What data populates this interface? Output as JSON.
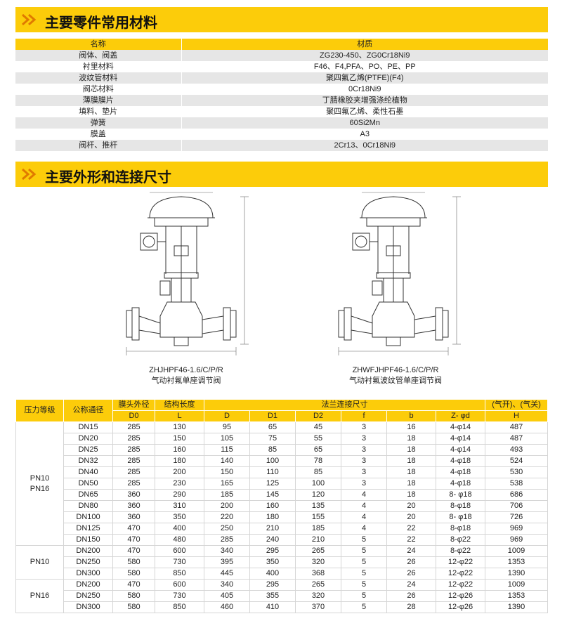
{
  "sections": [
    {
      "title": "主要零件常用材料"
    },
    {
      "title": "主要外形和连接尺寸"
    }
  ],
  "materials": {
    "header": [
      "名称",
      "材质"
    ],
    "rows": [
      [
        "阀体、阀盖",
        "ZG230-450、ZG0Cr18Ni9"
      ],
      [
        "衬里材料",
        "F46、F4,PFA、PO、PE、PP"
      ],
      [
        "波纹管材料",
        "聚四氟乙烯(PTFE)(F4)"
      ],
      [
        "阀芯材料",
        "0Cr18Ni9"
      ],
      [
        "薄膜膜片",
        "丁腈橡胶夹增强涤纶植物"
      ],
      [
        "填料、垫片",
        "聚四氟乙烯、柔性石墨"
      ],
      [
        "弹簧",
        "60Si2Mn"
      ],
      [
        "膜盖",
        "A3"
      ],
      [
        "阀杆、推杆",
        "2Cr13、0Cr18Ni9"
      ]
    ]
  },
  "drawings": [
    {
      "model": "ZHJHPF46-1.6/C/P/R",
      "name": "气动衬氟单座调节阀"
    },
    {
      "model": "ZHWFJHPF46-1.6/C/P/R",
      "name": "气动衬氟波纹管单座调节阀"
    }
  ],
  "dimensions": {
    "header_top": [
      "压力等级",
      "公称通径",
      "膜头外径",
      "结构长度",
      "法兰连接尺寸",
      "(气开)、(气关)"
    ],
    "header_sub": [
      "D0",
      "L",
      "D",
      "D1",
      "D2",
      "f",
      "b",
      "Z- φd",
      "H"
    ],
    "groups": [
      {
        "pressure": [
          "PN10",
          "PN16"
        ],
        "rows": [
          [
            "DN15",
            "285",
            "130",
            "95",
            "65",
            "45",
            "3",
            "16",
            "4-φ14",
            "487"
          ],
          [
            "DN20",
            "285",
            "150",
            "105",
            "75",
            "55",
            "3",
            "18",
            "4-φ14",
            "487"
          ],
          [
            "DN25",
            "285",
            "160",
            "115",
            "85",
            "65",
            "3",
            "18",
            "4-φ14",
            "493"
          ],
          [
            "DN32",
            "285",
            "180",
            "140",
            "100",
            "78",
            "3",
            "18",
            "4-φ18",
            "524"
          ],
          [
            "DN40",
            "285",
            "200",
            "150",
            "110",
            "85",
            "3",
            "18",
            "4-φ18",
            "530"
          ],
          [
            "DN50",
            "285",
            "230",
            "165",
            "125",
            "100",
            "3",
            "18",
            "4-φ18",
            "538"
          ],
          [
            "DN65",
            "360",
            "290",
            "185",
            "145",
            "120",
            "4",
            "18",
            "8- φ18",
            "686"
          ],
          [
            "DN80",
            "360",
            "310",
            "200",
            "160",
            "135",
            "4",
            "20",
            "8-φ18",
            "706"
          ],
          [
            "DN100",
            "360",
            "350",
            "220",
            "180",
            "155",
            "4",
            "20",
            "8- φ18",
            "726"
          ],
          [
            "DN125",
            "470",
            "400",
            "250",
            "210",
            "185",
            "4",
            "22",
            "8-φ18",
            "969"
          ],
          [
            "DN150",
            "470",
            "480",
            "285",
            "240",
            "210",
            "5",
            "22",
            "8-φ22",
            "969"
          ]
        ]
      },
      {
        "pressure": [
          "PN10"
        ],
        "rows": [
          [
            "DN200",
            "470",
            "600",
            "340",
            "295",
            "265",
            "5",
            "24",
            "8-φ22",
            "1009"
          ],
          [
            "DN250",
            "580",
            "730",
            "395",
            "350",
            "320",
            "5",
            "26",
            "12-φ22",
            "1353"
          ],
          [
            "DN300",
            "580",
            "850",
            "445",
            "400",
            "368",
            "5",
            "26",
            "12-φ22",
            "1390"
          ]
        ]
      },
      {
        "pressure": [
          "PN16"
        ],
        "rows": [
          [
            "DN200",
            "470",
            "600",
            "340",
            "295",
            "265",
            "5",
            "24",
            "12-φ22",
            "1009"
          ],
          [
            "DN250",
            "580",
            "730",
            "405",
            "355",
            "320",
            "5",
            "26",
            "12-φ26",
            "1353"
          ],
          [
            "DN300",
            "580",
            "850",
            "460",
            "410",
            "370",
            "5",
            "28",
            "12-φ26",
            "1390"
          ]
        ]
      }
    ]
  }
}
